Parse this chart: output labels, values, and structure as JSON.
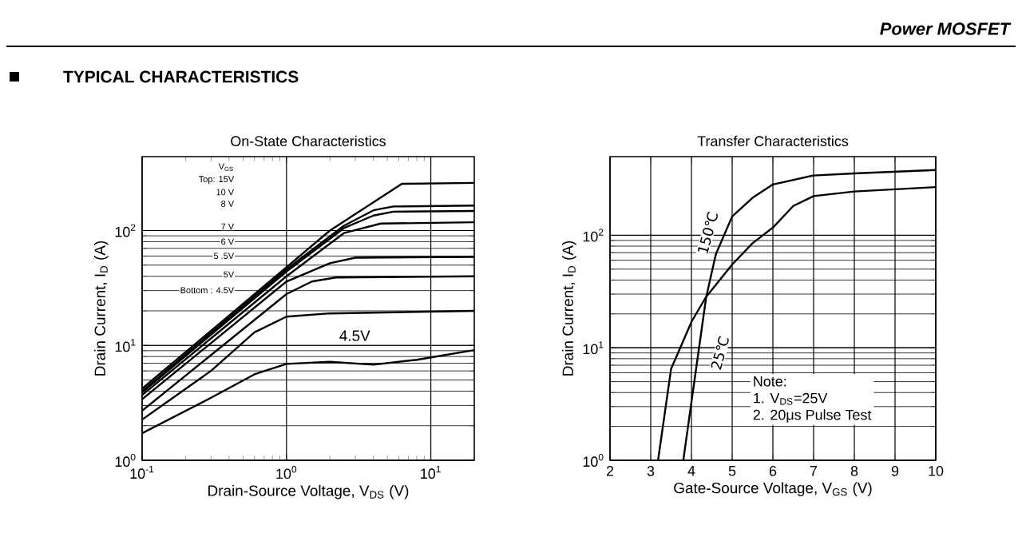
{
  "chart_data": [
    {
      "type": "line",
      "title": "On-State Characteristics",
      "xlabel": "Drain-Source Voltage, V$_{DS}$ (V)",
      "ylabel": "Drain Current, I$_{D}$ (A)",
      "log": "xy",
      "grid": true,
      "marker": "none",
      "line_style": "solid",
      "xlim": [
        0.1,
        20
      ],
      "ylim": [
        1,
        440
      ],
      "xticks": [
        {
          "value": 0.1,
          "label": "10$^{-1}$"
        },
        {
          "value": 1,
          "label": "10$^{0}$"
        },
        {
          "value": 10,
          "label": "10$^{1}$"
        }
      ],
      "yticks": [
        {
          "value": 1,
          "label": "10$^{0}$"
        },
        {
          "value": 10,
          "label": "10$^{1}$"
        },
        {
          "value": 100,
          "label": "10$^{2}$"
        }
      ],
      "annotations": [
        "Power MOSFET",
        "TYPICAL CHARACTERISTICS",
        "V$_{GS}$",
        "Top:   15V",
        "10 V",
        "8 V",
        "7 V",
        "6 V",
        "5 .5V",
        "5V",
        "Bottom : 4.5V",
        "4.5V"
      ],
      "series": [
        {
          "color": "#000000",
          "x": [
            0.1,
            1,
            2,
            6.3,
            20
          ],
          "values": [
            4.2,
            48,
            100,
            255,
            260
          ]
        },
        {
          "color": "#000000",
          "x": [
            0.1,
            1,
            2.5,
            4,
            5.5,
            20
          ],
          "values": [
            4.0,
            46,
            110,
            150,
            162,
            165
          ]
        },
        {
          "color": "#000000",
          "x": [
            0.1,
            1,
            2.5,
            4,
            5.5,
            20
          ],
          "values": [
            3.9,
            44,
            105,
            135,
            146,
            148
          ]
        },
        {
          "color": "#000000",
          "x": [
            0.1,
            1,
            2.5,
            4.5,
            20
          ],
          "values": [
            3.7,
            40,
            95,
            115,
            118
          ]
        },
        {
          "color": "#000000",
          "x": [
            0.1,
            1,
            2,
            3,
            20
          ],
          "values": [
            3.4,
            36,
            52,
            58,
            59
          ]
        },
        {
          "color": "#000000",
          "x": [
            0.1,
            1,
            1.5,
            2.2,
            20
          ],
          "values": [
            2.7,
            28,
            36,
            39,
            40
          ]
        },
        {
          "color": "#000000",
          "x": [
            0.1,
            0.3,
            0.6,
            1,
            2,
            20
          ],
          "values": [
            2.26,
            6,
            13,
            17.8,
            19,
            20
          ]
        },
        {
          "color": "#000000",
          "x": [
            0.1,
            0.3,
            0.6,
            1,
            2,
            4,
            8,
            20
          ],
          "values": [
            1.72,
            3.5,
            5.6,
            6.9,
            7.2,
            6.8,
            7.5,
            9.1
          ]
        }
      ]
    },
    {
      "type": "line",
      "title": "Transfer Characteristics",
      "xlabel": "Gate-Source Voltage, V$_{GS}$ (V)",
      "ylabel": "Drain Current, I$_{D}$ (A)",
      "log": "y",
      "grid": true,
      "marker": "none",
      "line_style": "solid",
      "xlim": [
        2,
        10
      ],
      "ylim": [
        1,
        500
      ],
      "xticks": [
        2,
        3,
        4,
        5,
        6,
        7,
        8,
        9,
        10
      ],
      "yticks": [
        {
          "value": 1,
          "label": "10$^{0}$"
        },
        {
          "value": 10,
          "label": "10$^{1}$"
        },
        {
          "value": 100,
          "label": "10$^{2}$"
        }
      ],
      "annotations": [
        {
          "text": "150℃",
          "x": 4.4,
          "y": 105
        },
        {
          "text": "25℃",
          "x": 4.7,
          "y": 9
        },
        "Note:",
        "1. V$_{DS}$=25V",
        "2. 20μs Pulse Test"
      ],
      "series": [
        {
          "color": "#000000",
          "x": [
            3.18,
            3.5,
            3.7,
            4.0,
            4.35,
            5,
            5.5,
            6,
            6.5,
            7,
            8,
            10
          ],
          "values": [
            1,
            6.5,
            9.5,
            17,
            28,
            55,
            85,
            117,
            182,
            223,
            245,
            268
          ]
        },
        {
          "color": "#000000",
          "x": [
            3.8,
            4.0,
            4.36,
            4.6,
            5,
            5.5,
            6,
            7,
            8,
            10
          ],
          "values": [
            1,
            3.3,
            28,
            68,
            147,
            215,
            283,
            340,
            355,
            380
          ]
        }
      ]
    }
  ]
}
